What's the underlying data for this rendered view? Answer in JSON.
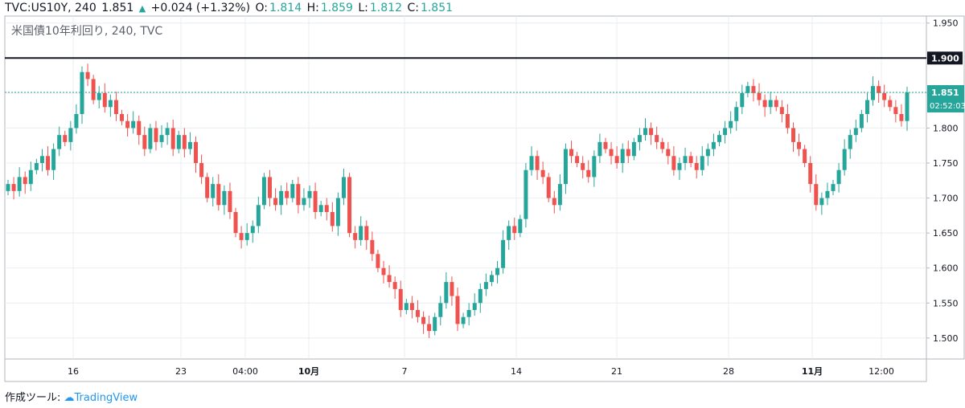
{
  "header": {
    "symbol": "TVC:US10Y, 240",
    "last": "1.851",
    "arrow": "▲",
    "change": "+0.024 (+1.32%)",
    "o_label": "O:",
    "o": "1.814",
    "h_label": "H:",
    "h": "1.859",
    "l_label": "L:",
    "l": "1.812",
    "c_label": "C:",
    "c": "1.851"
  },
  "subtitle": "米国債10年利回り, 240, TVC",
  "footer": {
    "label": "作成ツール:",
    "brand": "TradingView"
  },
  "colors": {
    "up": "#26a69a",
    "down": "#ef5350",
    "grid": "#e8eef0",
    "line": "#131722",
    "price_tag": "#26a69a"
  },
  "chart_data": {
    "type": "candlestick",
    "title": "米国債10年利回り, 240, TVC",
    "ylim": [
      1.47,
      1.96
    ],
    "y_ticks": [
      "1.950",
      "1.900",
      "1.850",
      "1.800",
      "1.750",
      "1.700",
      "1.650",
      "1.600",
      "1.550",
      "1.500"
    ],
    "x_ticks": [
      "16",
      "23",
      "04:00",
      "10月",
      "7",
      "14",
      "21",
      "28",
      "11月",
      "12:00"
    ],
    "horizontal_line": {
      "value": 1.9,
      "label": "1.900"
    },
    "last_price": {
      "value": 1.851,
      "label": "1.851",
      "countdown": "02:52:03"
    },
    "series_close": [
      1.72,
      1.71,
      1.73,
      1.72,
      1.74,
      1.75,
      1.76,
      1.74,
      1.77,
      1.79,
      1.78,
      1.8,
      1.82,
      1.88,
      1.87,
      1.84,
      1.85,
      1.83,
      1.84,
      1.82,
      1.81,
      1.8,
      1.81,
      1.79,
      1.77,
      1.8,
      1.78,
      1.79,
      1.8,
      1.77,
      1.79,
      1.77,
      1.78,
      1.75,
      1.73,
      1.7,
      1.72,
      1.69,
      1.71,
      1.68,
      1.65,
      1.64,
      1.65,
      1.66,
      1.69,
      1.73,
      1.7,
      1.69,
      1.71,
      1.7,
      1.72,
      1.69,
      1.7,
      1.71,
      1.68,
      1.69,
      1.68,
      1.66,
      1.7,
      1.73,
      1.65,
      1.64,
      1.66,
      1.64,
      1.62,
      1.6,
      1.59,
      1.58,
      1.57,
      1.54,
      1.55,
      1.54,
      1.53,
      1.52,
      1.51,
      1.53,
      1.55,
      1.58,
      1.56,
      1.52,
      1.53,
      1.54,
      1.55,
      1.57,
      1.58,
      1.59,
      1.6,
      1.64,
      1.66,
      1.65,
      1.67,
      1.74,
      1.76,
      1.74,
      1.73,
      1.7,
      1.69,
      1.72,
      1.77,
      1.76,
      1.75,
      1.74,
      1.73,
      1.76,
      1.78,
      1.77,
      1.76,
      1.75,
      1.77,
      1.76,
      1.78,
      1.79,
      1.8,
      1.79,
      1.78,
      1.77,
      1.76,
      1.74,
      1.75,
      1.76,
      1.75,
      1.74,
      1.76,
      1.77,
      1.78,
      1.79,
      1.8,
      1.81,
      1.83,
      1.85,
      1.86,
      1.85,
      1.84,
      1.83,
      1.84,
      1.83,
      1.82,
      1.8,
      1.78,
      1.77,
      1.75,
      1.72,
      1.69,
      1.7,
      1.71,
      1.72,
      1.74,
      1.77,
      1.79,
      1.8,
      1.82,
      1.84,
      1.86,
      1.85,
      1.84,
      1.83,
      1.82,
      1.81,
      1.851
    ]
  }
}
